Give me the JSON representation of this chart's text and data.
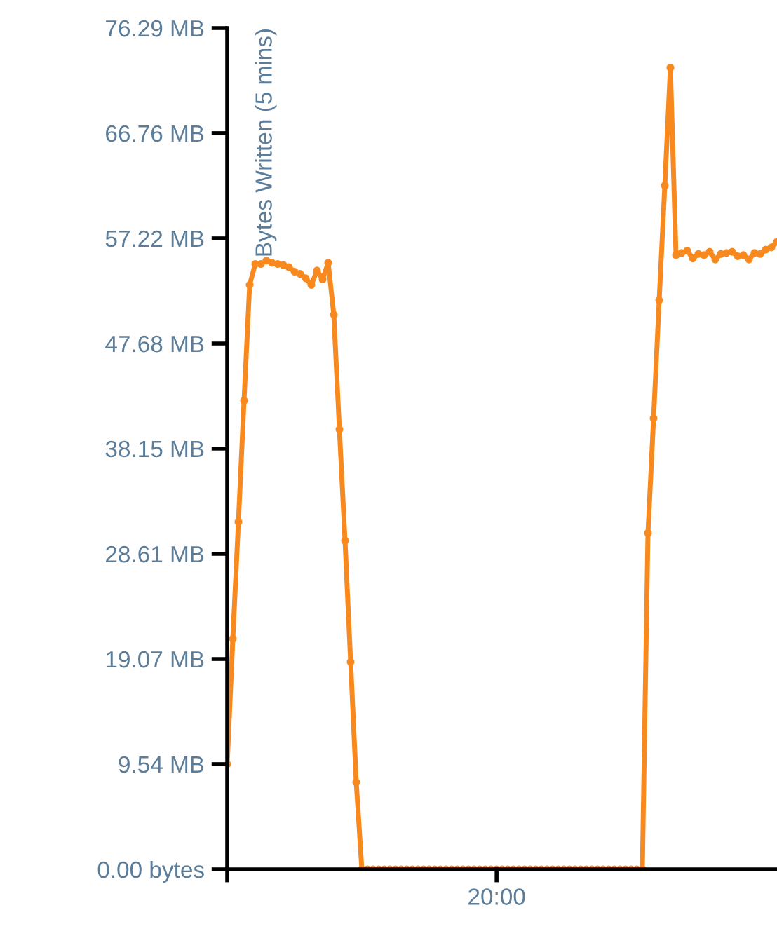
{
  "chart_data": {
    "type": "line",
    "ylabel": "Bytes Written (5 mins)",
    "categories": [
      null,
      null,
      null,
      null,
      null,
      null,
      null,
      null,
      null,
      null,
      null,
      null,
      null,
      null,
      null,
      null,
      null,
      null,
      null,
      null,
      null,
      null,
      null,
      null,
      null,
      null,
      null,
      null,
      null,
      null,
      null,
      null,
      null,
      null,
      null,
      null,
      null,
      null,
      null,
      null,
      null,
      null,
      null,
      null,
      null,
      null,
      null,
      null,
      null,
      null,
      null,
      null,
      null,
      null,
      null,
      null,
      null,
      null,
      null,
      null,
      null,
      null,
      null,
      null,
      null,
      null,
      null,
      null,
      null,
      null,
      null,
      null,
      null,
      null,
      null,
      null,
      null,
      null,
      null,
      null,
      null,
      null,
      null,
      null,
      null,
      null,
      null,
      null,
      null,
      null,
      null,
      null,
      null,
      null,
      null,
      null,
      null,
      null,
      null
    ],
    "annotations": [
      "20:00"
    ],
    "series": [
      {
        "color": "#f7891f",
        "values": [
          9.54,
          20.9,
          31.5,
          42.5,
          53.0,
          54.9,
          54.9,
          55.2,
          55.0,
          54.9,
          54.8,
          54.6,
          54.2,
          54.0,
          53.6,
          53.0,
          54.3,
          53.5,
          55.0,
          50.3,
          39.9,
          29.8,
          18.8,
          7.9,
          0,
          0,
          0,
          0,
          0,
          0,
          0,
          0,
          0,
          0,
          0,
          0,
          0,
          0,
          0,
          0,
          0,
          0,
          0,
          0,
          0,
          0,
          0,
          0,
          0,
          0,
          0,
          0,
          0,
          0,
          0,
          0,
          0,
          0,
          0,
          0,
          0,
          0,
          0,
          0,
          0,
          0,
          0,
          0,
          0,
          0,
          0,
          0,
          0,
          0,
          0,
          30.5,
          40.9,
          51.6,
          62.0,
          72.7,
          55.7,
          55.9,
          56.1,
          55.4,
          55.8,
          55.7,
          56.0,
          55.3,
          55.8,
          55.9,
          56.0,
          55.6,
          55.7,
          55.3,
          55.9,
          55.8,
          56.2,
          56.4,
          56.9
        ]
      }
    ],
    "ylim": [
      0,
      76.29
    ],
    "yticks": [
      {
        "value": 0,
        "label": "0.00 bytes"
      },
      {
        "value": 9.54,
        "label": "9.54 MB"
      },
      {
        "value": 19.07,
        "label": "19.07 MB"
      },
      {
        "value": 28.61,
        "label": "28.61 MB"
      },
      {
        "value": 38.15,
        "label": "38.15 MB"
      },
      {
        "value": 47.68,
        "label": "47.68 MB"
      },
      {
        "value": 57.22,
        "label": "57.22 MB"
      },
      {
        "value": 66.76,
        "label": "66.76 MB"
      },
      {
        "value": 76.29,
        "label": "76.29 MB"
      }
    ],
    "grid": false,
    "legend": false,
    "marker": "circle",
    "line_style": "solid"
  }
}
